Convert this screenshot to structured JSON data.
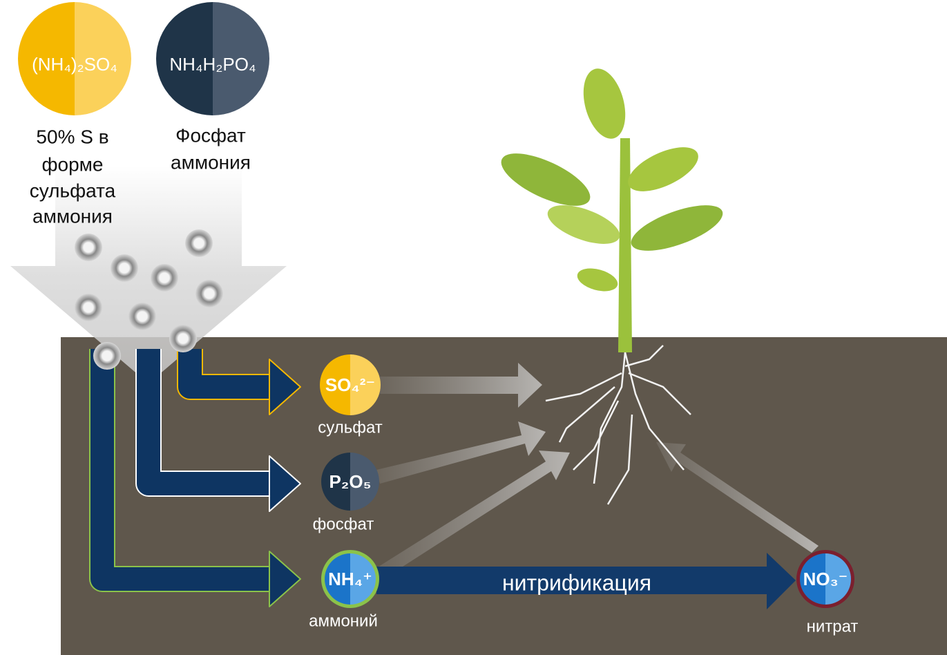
{
  "fertilizers": [
    {
      "formula": "(NH₄)₂SO₄",
      "label_lines": [
        "50% S в",
        "форме",
        "сульфата",
        "аммония"
      ]
    },
    {
      "formula": "NH₄H₂PO₄",
      "label_lines": [
        "Фосфат",
        "аммония"
      ]
    }
  ],
  "ions": [
    {
      "formula": "SO₄²⁻",
      "label": "сульфат"
    },
    {
      "formula": "P₂O₅",
      "label": "фосфат"
    },
    {
      "formula": "NH₄⁺",
      "label": "аммоний"
    },
    {
      "formula": "NO₃⁻",
      "label": "нитрат"
    }
  ],
  "process": "нитрификация"
}
